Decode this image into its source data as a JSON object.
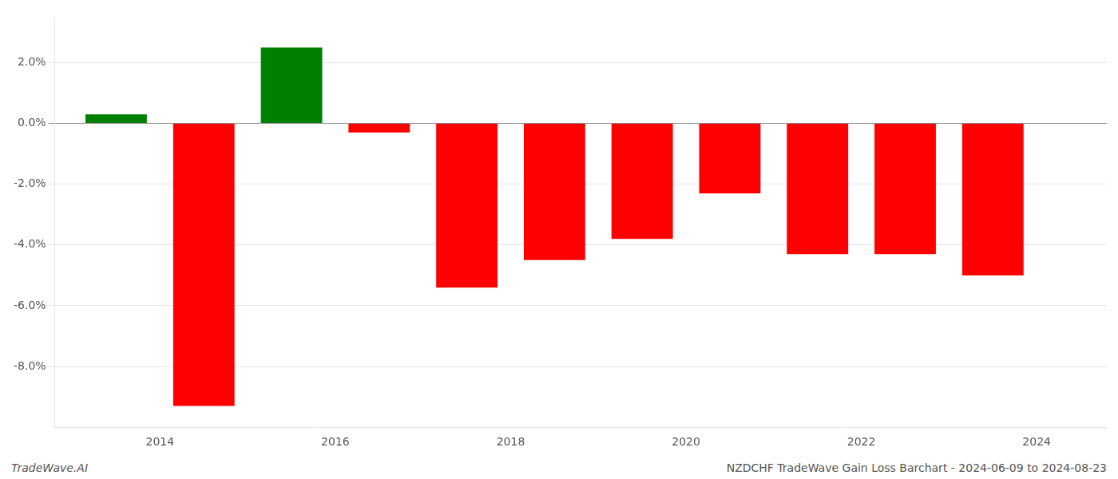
{
  "chart_data": {
    "type": "bar",
    "x": [
      2013.5,
      2014.5,
      2015.5,
      2016.5,
      2017.5,
      2018.5,
      2019.5,
      2020.5,
      2021.5,
      2022.5,
      2023.5
    ],
    "values": [
      0.003,
      -0.093,
      0.025,
      -0.003,
      -0.054,
      -0.045,
      -0.038,
      -0.023,
      -0.043,
      -0.043,
      -0.05
    ],
    "colors": [
      "#008000",
      "#ff0000",
      "#008000",
      "#ff0000",
      "#ff0000",
      "#ff0000",
      "#ff0000",
      "#ff0000",
      "#ff0000",
      "#ff0000",
      "#ff0000"
    ],
    "xlim": [
      2012.8,
      2024.8
    ],
    "xticks": [
      2014,
      2016,
      2018,
      2020,
      2022,
      2024
    ],
    "ylim": [
      -0.1,
      0.035
    ],
    "yticks": [
      {
        "value": -0.08,
        "label": "-8.0%"
      },
      {
        "value": -0.06,
        "label": "-6.0%"
      },
      {
        "value": -0.04,
        "label": "-4.0%"
      },
      {
        "value": -0.02,
        "label": "-2.0%"
      },
      {
        "value": 0.0,
        "label": "0.0%"
      },
      {
        "value": 0.02,
        "label": "2.0%"
      }
    ],
    "grid": "y",
    "annotations": [
      "TradeWave.AI",
      "NZDCHF TradeWave Gain Loss Barchart - 2024-06-09 to 2024-08-23"
    ]
  }
}
